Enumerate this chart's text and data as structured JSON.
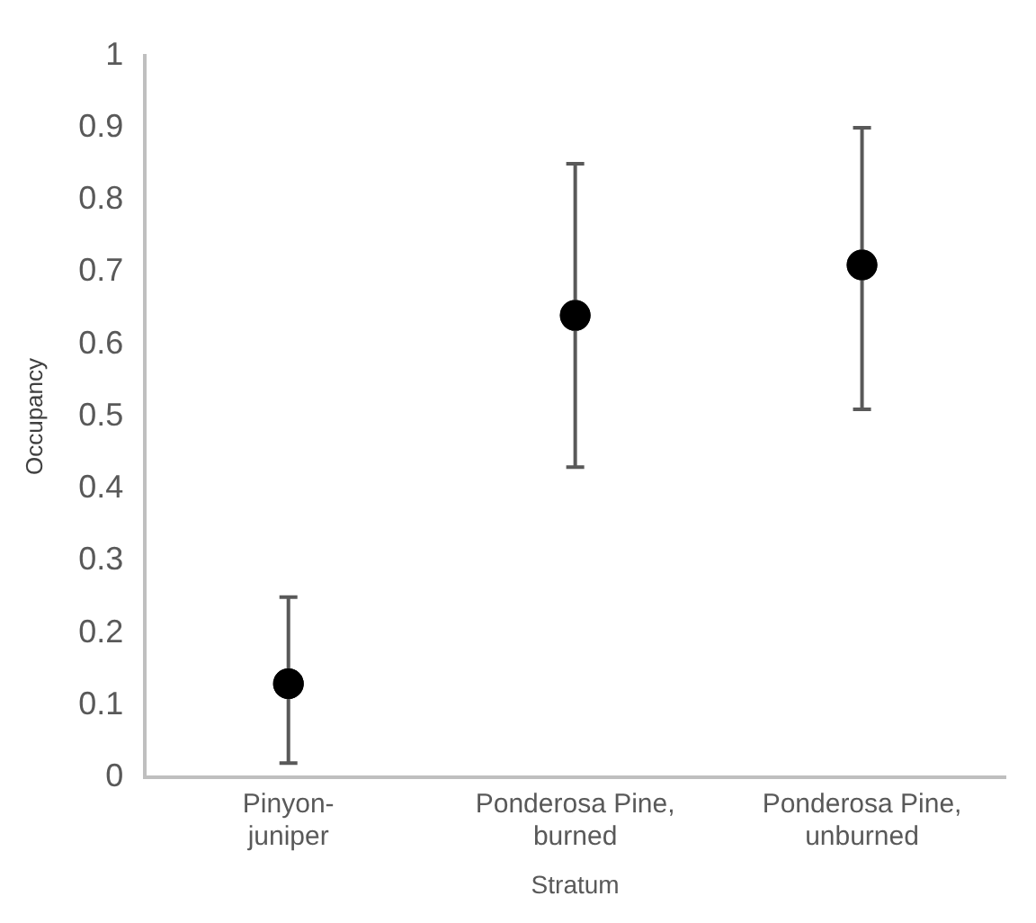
{
  "chart_data": {
    "type": "scatter",
    "xlabel": "Stratum",
    "ylabel": "Occupancy",
    "categories": [
      "Pinyon-juniper",
      "Ponderosa Pine, burned",
      "Ponderosa Pine, unburned"
    ],
    "values": [
      0.13,
      0.64,
      0.71
    ],
    "errors": [
      [
        0.02,
        0.25
      ],
      [
        0.43,
        0.85
      ],
      [
        0.51,
        0.9
      ]
    ],
    "color": "#000000",
    "marker": "circle",
    "ylim": [
      0,
      1
    ],
    "yticks": [
      0,
      0.1,
      0.2,
      0.3,
      0.4,
      0.5,
      0.6,
      0.7,
      0.8,
      0.9,
      1
    ],
    "grid": false,
    "legend": false
  }
}
